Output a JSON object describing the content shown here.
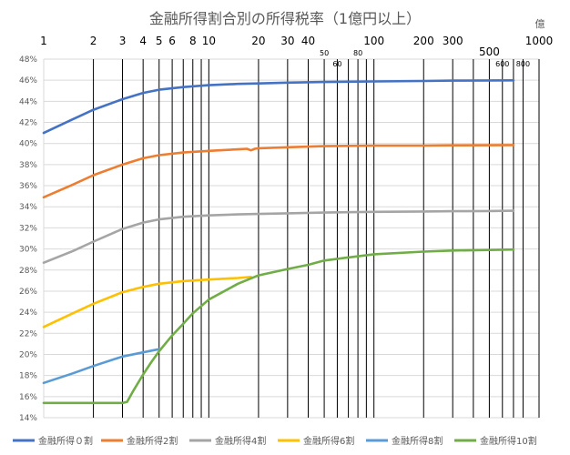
{
  "chart_data": {
    "type": "line",
    "title": "金融所得割合別の所得税率（1億円以上）",
    "unit_label": "億",
    "x_scale": "log",
    "xlim": [
      1,
      1000
    ],
    "ylim": [
      0.14,
      0.48
    ],
    "y_ticks": [
      "14%",
      "16%",
      "18%",
      "20%",
      "22%",
      "24%",
      "26%",
      "28%",
      "30%",
      "32%",
      "34%",
      "36%",
      "38%",
      "40%",
      "42%",
      "44%",
      "46%",
      "48%"
    ],
    "y_gridlines": true,
    "x_ticks": [
      {
        "value": 1,
        "label": "1",
        "size": "big",
        "row": 0,
        "line": false
      },
      {
        "value": 2,
        "label": "2",
        "size": "big",
        "row": 0,
        "line": true
      },
      {
        "value": 3,
        "label": "3",
        "size": "big",
        "row": 0,
        "line": true
      },
      {
        "value": 4,
        "label": "4",
        "size": "big",
        "row": 0,
        "line": true
      },
      {
        "value": 5,
        "label": "5",
        "size": "big",
        "row": 0,
        "line": true
      },
      {
        "value": 6,
        "label": "6",
        "size": "big",
        "row": 0,
        "line": true
      },
      {
        "value": 7,
        "label": "",
        "size": "big",
        "row": 0,
        "line": true
      },
      {
        "value": 8,
        "label": "8",
        "size": "big",
        "row": 0,
        "line": true
      },
      {
        "value": 9,
        "label": "",
        "size": "big",
        "row": 0,
        "line": true
      },
      {
        "value": 10,
        "label": "10",
        "size": "big",
        "row": 0,
        "line": true
      },
      {
        "value": 20,
        "label": "20",
        "size": "big",
        "row": 0,
        "line": true
      },
      {
        "value": 30,
        "label": "30",
        "size": "big",
        "row": 0,
        "line": true
      },
      {
        "value": 40,
        "label": "40",
        "size": "big",
        "row": 0,
        "line": true
      },
      {
        "value": 50,
        "label": "50",
        "size": "small",
        "row": 1,
        "line": true
      },
      {
        "value": 60,
        "label": "60",
        "size": "small",
        "row": 2,
        "line": true
      },
      {
        "value": 70,
        "label": "",
        "size": "small",
        "row": 0,
        "line": true
      },
      {
        "value": 80,
        "label": "80",
        "size": "small",
        "row": 1,
        "line": true
      },
      {
        "value": 90,
        "label": "",
        "size": "small",
        "row": 0,
        "line": true
      },
      {
        "value": 100,
        "label": "100",
        "size": "big",
        "row": 0,
        "line": true
      },
      {
        "value": 200,
        "label": "200",
        "size": "big",
        "row": 0,
        "line": true
      },
      {
        "value": 300,
        "label": "300",
        "size": "big",
        "row": 0,
        "line": true
      },
      {
        "value": 400,
        "label": "",
        "size": "big",
        "row": 0,
        "line": true
      },
      {
        "value": 500,
        "label": "500",
        "size": "big",
        "row": 1,
        "line": true
      },
      {
        "value": 600,
        "label": "600",
        "size": "small",
        "row": 2,
        "line": true
      },
      {
        "value": 700,
        "label": "",
        "size": "small",
        "row": 0,
        "line": true
      },
      {
        "value": 800,
        "label": "800",
        "size": "small",
        "row": 2,
        "line": true
      },
      {
        "value": 1000,
        "label": "1000",
        "size": "big",
        "row": 0,
        "line": true
      }
    ],
    "legend_position": "bottom",
    "series": [
      {
        "name": "金融所得０割",
        "color": "#4472C4",
        "points": [
          [
            1,
            0.41
          ],
          [
            1.5,
            0.423
          ],
          [
            2,
            0.432
          ],
          [
            3,
            0.442
          ],
          [
            4,
            0.448
          ],
          [
            5,
            0.451
          ],
          [
            7,
            0.4535
          ],
          [
            10,
            0.4553
          ],
          [
            15,
            0.4565
          ],
          [
            20,
            0.457
          ],
          [
            30,
            0.4577
          ],
          [
            50,
            0.4583
          ],
          [
            70,
            0.4586
          ],
          [
            100,
            0.4589
          ],
          [
            200,
            0.4593
          ],
          [
            300,
            0.4596
          ],
          [
            500,
            0.4598
          ],
          [
            700,
            0.4599
          ]
        ]
      },
      {
        "name": "金融所得2割",
        "color": "#ED7D31",
        "points": [
          [
            1,
            0.349
          ],
          [
            1.5,
            0.361
          ],
          [
            2,
            0.37
          ],
          [
            3,
            0.38
          ],
          [
            4,
            0.386
          ],
          [
            5,
            0.389
          ],
          [
            7,
            0.3915
          ],
          [
            10,
            0.393
          ],
          [
            15,
            0.3945
          ],
          [
            17,
            0.395
          ],
          [
            18,
            0.3935
          ],
          [
            19,
            0.395
          ],
          [
            20,
            0.3955
          ],
          [
            30,
            0.3965
          ],
          [
            50,
            0.3975
          ],
          [
            100,
            0.398
          ],
          [
            200,
            0.398
          ],
          [
            300,
            0.3983
          ],
          [
            500,
            0.3984
          ],
          [
            700,
            0.3985
          ]
        ]
      },
      {
        "name": "金融所得4割",
        "color": "#A5A5A5",
        "points": [
          [
            1,
            0.287
          ],
          [
            1.5,
            0.298
          ],
          [
            2,
            0.307
          ],
          [
            3,
            0.319
          ],
          [
            4,
            0.325
          ],
          [
            5,
            0.328
          ],
          [
            7,
            0.3305
          ],
          [
            10,
            0.3318
          ],
          [
            15,
            0.3328
          ],
          [
            20,
            0.3332
          ],
          [
            30,
            0.3338
          ],
          [
            50,
            0.3345
          ],
          [
            100,
            0.3352
          ],
          [
            200,
            0.3355
          ],
          [
            300,
            0.3358
          ],
          [
            500,
            0.336
          ],
          [
            700,
            0.3362
          ]
        ]
      },
      {
        "name": "金融所得6割",
        "color": "#FFC000",
        "points": [
          [
            1,
            0.226
          ],
          [
            1.5,
            0.239
          ],
          [
            2,
            0.248
          ],
          [
            3,
            0.259
          ],
          [
            4,
            0.264
          ],
          [
            5,
            0.267
          ],
          [
            7,
            0.2695
          ],
          [
            10,
            0.271
          ],
          [
            15,
            0.2725
          ],
          [
            18,
            0.2735
          ]
        ]
      },
      {
        "name": "金融所得8割",
        "color": "#5B9BD5",
        "points": [
          [
            1,
            0.173
          ],
          [
            1.5,
            0.182
          ],
          [
            2,
            0.189
          ],
          [
            3,
            0.198
          ],
          [
            4,
            0.202
          ],
          [
            5,
            0.205
          ]
        ]
      },
      {
        "name": "金融所得10割",
        "color": "#70AD47",
        "points": [
          [
            1,
            0.154
          ],
          [
            3,
            0.154
          ],
          [
            3.2,
            0.155
          ],
          [
            3.5,
            0.166
          ],
          [
            4,
            0.181
          ],
          [
            4.5,
            0.193
          ],
          [
            5,
            0.203
          ],
          [
            6,
            0.218
          ],
          [
            7,
            0.229
          ],
          [
            8,
            0.239
          ],
          [
            10,
            0.252
          ],
          [
            15,
            0.267
          ],
          [
            20,
            0.275
          ],
          [
            30,
            0.281
          ],
          [
            40,
            0.285
          ],
          [
            50,
            0.289
          ],
          [
            70,
            0.292
          ],
          [
            100,
            0.295
          ],
          [
            200,
            0.2975
          ],
          [
            300,
            0.2985
          ],
          [
            500,
            0.299
          ],
          [
            700,
            0.2995
          ]
        ]
      }
    ]
  }
}
